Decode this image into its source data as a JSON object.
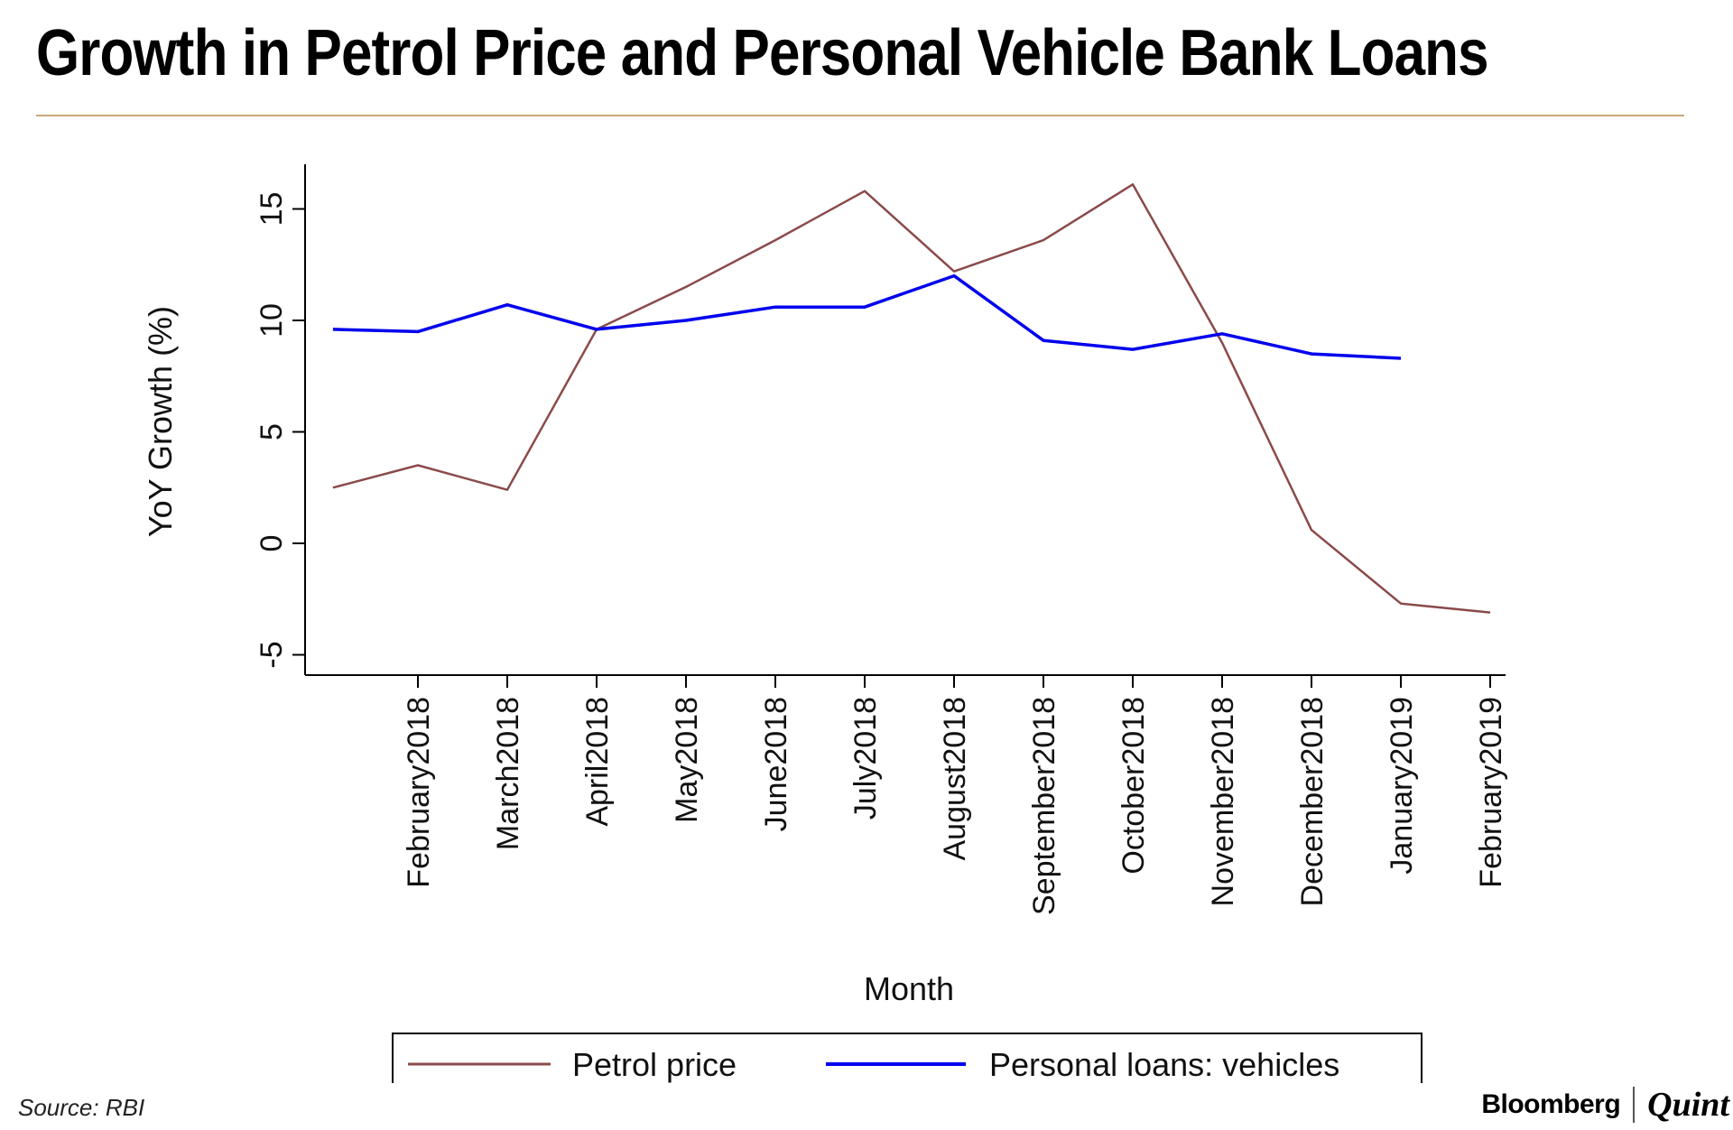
{
  "title": "Growth in Petrol Price and Personal Vehicle Bank Loans",
  "source": "Source: RBI",
  "brand": {
    "left": "Bloomberg",
    "right": "Quint"
  },
  "colors": {
    "petrol": "#8b4a4a",
    "loans": "#0000ee",
    "rule": "#c9a77a"
  },
  "chart_data": {
    "type": "line",
    "xlabel": "Month",
    "ylabel": "YoY Growth (%)",
    "ylim": [
      -5,
      17
    ],
    "yticks": [
      -5,
      0,
      5,
      10,
      15
    ],
    "ytick_labels": [
      "-5",
      "0",
      "5",
      "10",
      "15"
    ],
    "categories": [
      "February2018",
      "March2018",
      "April2018",
      "May2018",
      "June2018",
      "July2018",
      "August2018",
      "September2018",
      "October2018",
      "November2018",
      "December2018",
      "January2019",
      "February2019"
    ],
    "series": [
      {
        "name": "Petrol price",
        "color": "#8b4a4a",
        "x": [
          -0.95,
          0,
          1,
          2,
          3,
          4,
          5,
          6,
          7,
          8,
          9,
          10,
          11,
          12
        ],
        "values": [
          2.5,
          3.5,
          2.4,
          9.6,
          11.5,
          13.6,
          15.8,
          12.2,
          13.6,
          16.1,
          9.0,
          0.6,
          -2.7,
          -3.1
        ]
      },
      {
        "name": "Personal loans: vehicles",
        "color": "#0000ee",
        "x": [
          -0.95,
          0,
          1,
          2,
          3,
          4,
          5,
          6,
          7,
          8,
          9,
          10,
          11
        ],
        "values": [
          9.6,
          9.5,
          10.7,
          9.6,
          10.0,
          10.6,
          10.6,
          12.0,
          9.1,
          8.7,
          9.4,
          8.5,
          8.3
        ]
      }
    ],
    "legend_position": "bottom"
  }
}
